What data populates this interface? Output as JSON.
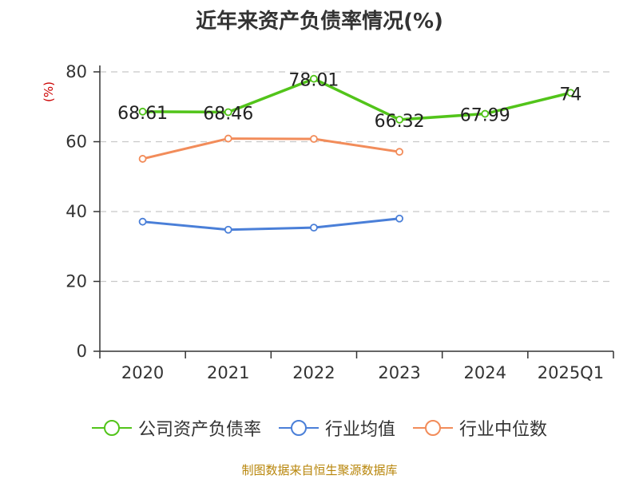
{
  "page": {
    "title": "近年来资产负债率情况(%)",
    "source": "制图数据来自恒生聚源数据库",
    "source_color": "#b8860b"
  },
  "chart_data": {
    "type": "line",
    "title": "近年来资产负债率情况(%)",
    "ylabel": "(%)",
    "xlabel": "",
    "categories": [
      "2020",
      "2021",
      "2022",
      "2023",
      "2024",
      "2025Q1"
    ],
    "ylim": [
      0,
      80
    ],
    "yticks": [
      0,
      20,
      40,
      60,
      80
    ],
    "grid": true,
    "legend_position": "bottom",
    "series": [
      {
        "name": "公司资产负债率",
        "color": "#52c41a",
        "values": [
          68.61,
          68.46,
          78.01,
          66.32,
          67.99,
          74
        ],
        "labels": [
          "68.61",
          "68.46",
          "78.01",
          "66.32",
          "67.99",
          "74"
        ]
      },
      {
        "name": "行业均值",
        "color": "#4a7fd8",
        "values": [
          37.1,
          34.8,
          35.4,
          38.0,
          null,
          null
        ]
      },
      {
        "name": "行业中位数",
        "color": "#f28c5a",
        "values": [
          55.1,
          60.9,
          60.8,
          57.1,
          null,
          null
        ]
      }
    ]
  }
}
